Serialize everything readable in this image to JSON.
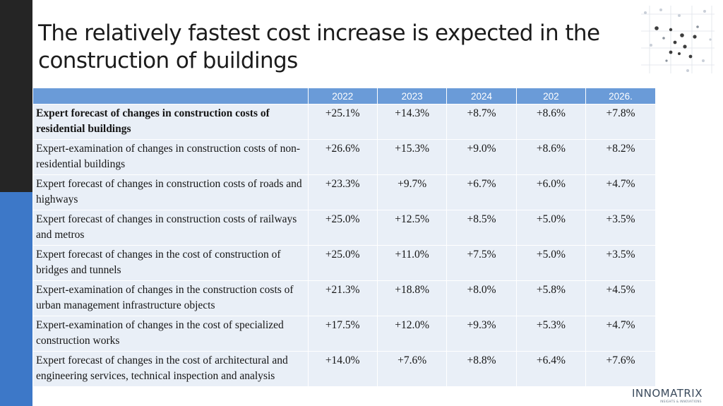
{
  "slide": {
    "title": "The relatively fastest cost increase is expected in the construction of buildings",
    "accent_dark": "#252525",
    "accent_blue": "#3d78c8",
    "header_color": "#6a9bd8",
    "row_color": "#e9eff7"
  },
  "table": {
    "columns": [
      "",
      "2022",
      "2023",
      "2024",
      "202",
      "2026."
    ],
    "rows": [
      {
        "label": "Expert forecast of changes in construction costs of residential buildings",
        "bold": true,
        "values": [
          "+25.1%",
          "+14.3%",
          "+8.7%",
          "+8.6%",
          "+7.8%"
        ]
      },
      {
        "label": "Expert-examination of changes in construction costs of non-residential buildings",
        "bold": false,
        "values": [
          "+26.6%",
          "+15.3%",
          "+9.0%",
          "+8.6%",
          "+8.2%"
        ]
      },
      {
        "label": "Expert forecast of changes in construction costs of roads and highways",
        "bold": false,
        "values": [
          "+23.3%",
          "+9.7%",
          "+6.7%",
          "+6.0%",
          "+4.7%"
        ]
      },
      {
        "label": "Expert forecast of changes in construction costs of railways and metros",
        "bold": false,
        "values": [
          "+25.0%",
          "+12.5%",
          "+8.5%",
          "+5.0%",
          "+3.5%"
        ]
      },
      {
        "label": "Expert forecast of changes in the cost of construction of bridges and tunnels",
        "bold": false,
        "values": [
          "+25.0%",
          "+11.0%",
          "+7.5%",
          "+5.0%",
          "+3.5%"
        ]
      },
      {
        "label": "Expert-examination of changes in the construction costs of urban management infrastructure objects",
        "bold": false,
        "values": [
          "+21.3%",
          "+18.8%",
          "+8.0%",
          "+5.8%",
          "+4.5%"
        ]
      },
      {
        "label": "Expert-examination of changes in the cost of specialized construction works",
        "bold": false,
        "values": [
          "+17.5%",
          "+12.0%",
          "+9.3%",
          "+5.3%",
          "+4.7%"
        ]
      },
      {
        "label": "Expert forecast of changes in the cost of architectural and engineering services, technical inspection and analysis",
        "bold": false,
        "values": [
          "+14.0%",
          "+7.6%",
          "+8.8%",
          "+6.4%",
          "+7.6%"
        ]
      }
    ]
  },
  "logo": {
    "text": "INNOMATRIX",
    "subtitle": "INSIGHTS & INNOVATIONS",
    "icon": "dots-network-icon"
  }
}
